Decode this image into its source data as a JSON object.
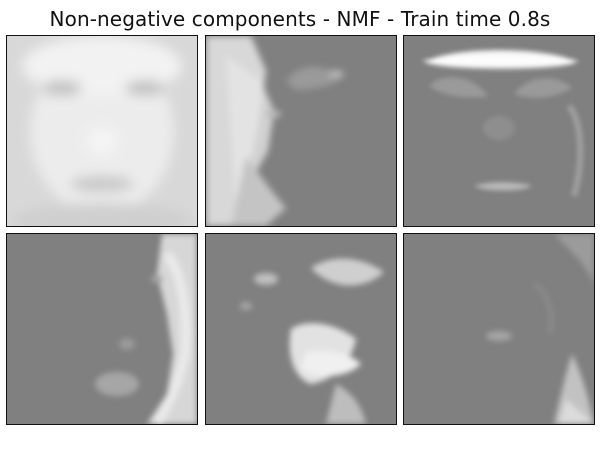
{
  "figure": {
    "title": "Non-negative components - NMF - Train time 0.8s"
  },
  "chart_data": {
    "type": "heatmap",
    "title": "Non-negative components - NMF - Train time 0.8s",
    "rows": 2,
    "cols": 3,
    "panels": [
      {
        "row": 1,
        "col": 1,
        "component": 1
      },
      {
        "row": 1,
        "col": 2,
        "component": 2
      },
      {
        "row": 1,
        "col": 3,
        "component": 3
      },
      {
        "row": 2,
        "col": 1,
        "component": 4
      },
      {
        "row": 2,
        "col": 2,
        "component": 5
      },
      {
        "row": 2,
        "col": 3,
        "component": 6
      }
    ],
    "colormap": "gray",
    "background_color": "#808080",
    "border_color": "#111111"
  }
}
